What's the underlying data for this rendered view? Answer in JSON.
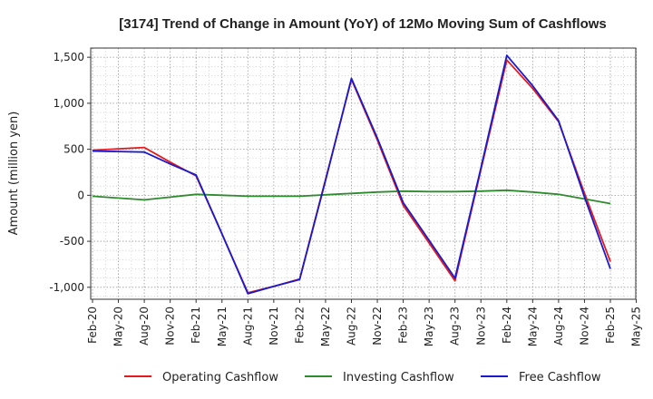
{
  "chart_data": {
    "type": "line",
    "title": "[3174]  Trend of Change in Amount (YoY) of 12Mo Moving Sum of Cashflows",
    "xlabel": "",
    "ylabel": "Amount (million yen)",
    "ylim": [
      -1130,
      1600
    ],
    "yticks": [
      1500,
      1000,
      500,
      0,
      -500,
      -1000
    ],
    "ytick_labels": [
      "1,500",
      "1,000",
      "500",
      "0",
      "-500",
      "-1,000"
    ],
    "categories": [
      "Feb-20",
      "May-20",
      "Aug-20",
      "Nov-20",
      "Feb-21",
      "May-21",
      "Aug-21",
      "Nov-21",
      "Feb-22",
      "May-22",
      "Aug-22",
      "Nov-22",
      "Feb-23",
      "May-23",
      "Aug-23",
      "Nov-23",
      "Feb-24",
      "May-24",
      "Aug-24",
      "Nov-24",
      "Feb-25",
      "May-25"
    ],
    "grid": true,
    "legend_position": "bottom",
    "series": [
      {
        "name": "Operating Cashflow",
        "color": "#e41a1c",
        "values": [
          490,
          505,
          520,
          360,
          210,
          -420,
          -1060,
          -990,
          -910,
          170,
          1260,
          600,
          -110,
          -520,
          -930,
          280,
          1470,
          1160,
          800,
          20,
          -720,
          null
        ]
      },
      {
        "name": "Investing Cashflow",
        "color": "#2e8b2e",
        "values": [
          -10,
          -30,
          -50,
          -20,
          10,
          0,
          -10,
          -10,
          -10,
          5,
          20,
          35,
          45,
          40,
          40,
          45,
          55,
          35,
          10,
          -40,
          -90,
          null
        ]
      },
      {
        "name": "Free Cashflow",
        "color": "#1a1acc",
        "values": [
          480,
          475,
          470,
          340,
          220,
          -420,
          -1070,
          -990,
          -915,
          160,
          1270,
          620,
          -80,
          -490,
          -900,
          300,
          1520,
          1190,
          810,
          -20,
          -800,
          null
        ]
      }
    ]
  }
}
